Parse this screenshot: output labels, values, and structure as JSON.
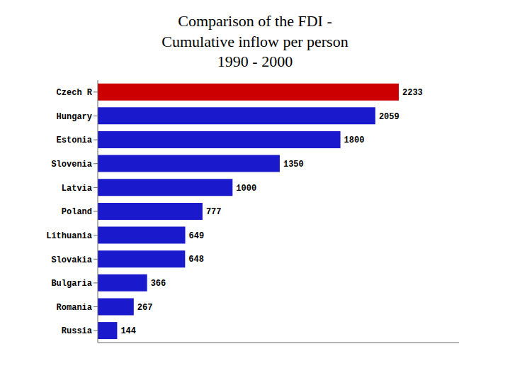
{
  "chart_data": {
    "type": "bar",
    "title": "Comparison of the FDI -\nCumulative inflow per person\n1990 - 2000",
    "orientation": "horizontal",
    "categories": [
      "Czech R",
      "Hungary",
      "Estonia",
      "Slovenia",
      "Latvia",
      "Poland",
      "Lithuania",
      "Slovakia",
      "Bulgaria",
      "Romania",
      "Russia"
    ],
    "values": [
      2233,
      2059,
      1800,
      1350,
      1000,
      777,
      649,
      648,
      366,
      267,
      144
    ],
    "colors": [
      "#cc0000",
      "#1a1acc",
      "#1a1acc",
      "#1a1acc",
      "#1a1acc",
      "#1a1acc",
      "#1a1acc",
      "#1a1acc",
      "#1a1acc",
      "#1a1acc",
      "#1a1acc"
    ],
    "xlim": [
      0,
      2679.6
    ],
    "data_labels": true,
    "tick_labels": "y",
    "grid": false
  }
}
